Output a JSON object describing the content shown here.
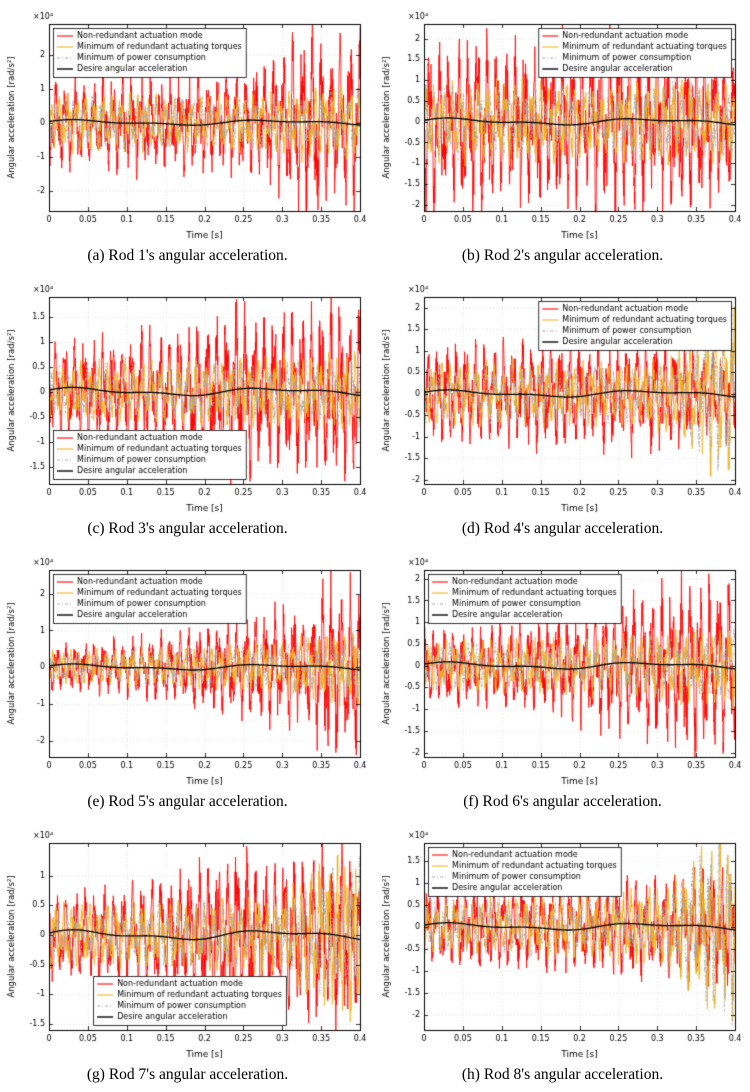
{
  "legend_entries": [
    {
      "label": "Non-redundant actuation mode",
      "color": "#FF0000",
      "style": "solid"
    },
    {
      "label": "Minimum of redundant actuating torques",
      "color": "#EFB320",
      "style": "solid"
    },
    {
      "label": "Minimum of power consumption",
      "color": "#A6A6A6",
      "style": "dashdot"
    },
    {
      "label": "Desire angular acceleration",
      "color": "#000000",
      "style": "solid"
    }
  ],
  "chart_data": [
    {
      "id": "a",
      "type": "line",
      "caption": "(a) Rod 1's angular acceleration.",
      "xlabel": "Time [s]",
      "ylabel": "Angular acceleration [rad/s²]",
      "exponent": "×10⁴",
      "xlim": [
        0,
        0.4
      ],
      "xticks": [
        0,
        0.05,
        0.1,
        0.15,
        0.2,
        0.25,
        0.3,
        0.35,
        0.4
      ],
      "ylim": [
        -2.6,
        2.9
      ],
      "yticks": [
        -2,
        -1,
        0,
        1,
        2
      ],
      "grid": true,
      "legend_pos": "nw",
      "seed": 11,
      "envelopes": {
        "red": [
          [
            0,
            1.3
          ],
          [
            0.05,
            1.2
          ],
          [
            0.1,
            1.5
          ],
          [
            0.15,
            1.3
          ],
          [
            0.2,
            1.4
          ],
          [
            0.25,
            1.5
          ],
          [
            0.28,
            1.8
          ],
          [
            0.31,
            2.3
          ],
          [
            0.34,
            2.7
          ],
          [
            0.36,
            2.0
          ],
          [
            0.38,
            2.4
          ],
          [
            0.4,
            2.6
          ]
        ],
        "yellow": [
          [
            0,
            0.8
          ],
          [
            0.1,
            0.85
          ],
          [
            0.2,
            0.8
          ],
          [
            0.3,
            0.95
          ],
          [
            0.35,
            1.1
          ],
          [
            0.4,
            1.05
          ]
        ],
        "gray": [
          [
            0,
            0.72
          ],
          [
            0.1,
            0.77
          ],
          [
            0.2,
            0.72
          ],
          [
            0.3,
            0.86
          ],
          [
            0.35,
            1.0
          ],
          [
            0.4,
            0.95
          ]
        ],
        "black": 0.06
      }
    },
    {
      "id": "b",
      "type": "line",
      "caption": "(b) Rod 2's angular acceleration.",
      "xlabel": "Time [s]",
      "ylabel": "Angular acceleration [rad/s²]",
      "exponent": "×10⁴",
      "xlim": [
        0,
        0.4
      ],
      "xticks": [
        0,
        0.05,
        0.1,
        0.15,
        0.2,
        0.25,
        0.3,
        0.35,
        0.4
      ],
      "ylim": [
        -2.15,
        2.35
      ],
      "yticks": [
        -2,
        -1.5,
        -1,
        -0.5,
        0,
        0.5,
        1,
        1.5,
        2
      ],
      "grid": true,
      "legend_pos": "ne",
      "seed": 22,
      "envelopes": {
        "red": [
          [
            0,
            2.2
          ],
          [
            0.03,
            1.7
          ],
          [
            0.07,
            2.3
          ],
          [
            0.1,
            1.8
          ],
          [
            0.15,
            2.1
          ],
          [
            0.2,
            1.9
          ],
          [
            0.25,
            2.2
          ],
          [
            0.3,
            1.9
          ],
          [
            0.35,
            2.0
          ],
          [
            0.4,
            1.7
          ]
        ],
        "yellow": [
          [
            0,
            0.9
          ],
          [
            0.1,
            0.95
          ],
          [
            0.2,
            0.9
          ],
          [
            0.3,
            0.95
          ],
          [
            0.4,
            1.0
          ]
        ],
        "gray": [
          [
            0,
            0.81
          ],
          [
            0.1,
            0.86
          ],
          [
            0.2,
            0.81
          ],
          [
            0.3,
            0.86
          ],
          [
            0.4,
            0.9
          ]
        ],
        "black": 0.06
      }
    },
    {
      "id": "c",
      "type": "line",
      "caption": "(c) Rod 3's angular acceleration.",
      "xlabel": "Time [s]",
      "ylabel": "Angular acceleration [rad/s²]",
      "exponent": "×10⁴",
      "xlim": [
        0,
        0.4
      ],
      "xticks": [
        0,
        0.05,
        0.1,
        0.15,
        0.2,
        0.25,
        0.3,
        0.35,
        0.4
      ],
      "ylim": [
        -1.85,
        1.9
      ],
      "yticks": [
        -1.5,
        -1,
        -0.5,
        0,
        0.5,
        1,
        1.5
      ],
      "grid": true,
      "legend_pos": "sw",
      "seed": 33,
      "envelopes": {
        "red": [
          [
            0,
            0.95
          ],
          [
            0.05,
            1.0
          ],
          [
            0.1,
            1.15
          ],
          [
            0.15,
            1.2
          ],
          [
            0.2,
            1.4
          ],
          [
            0.24,
            1.8
          ],
          [
            0.27,
            1.4
          ],
          [
            0.3,
            1.6
          ],
          [
            0.33,
            1.5
          ],
          [
            0.36,
            1.75
          ],
          [
            0.4,
            1.6
          ]
        ],
        "yellow": [
          [
            0,
            0.55
          ],
          [
            0.1,
            0.6
          ],
          [
            0.2,
            0.65
          ],
          [
            0.3,
            0.7
          ],
          [
            0.4,
            0.75
          ]
        ],
        "gray": [
          [
            0,
            0.5
          ],
          [
            0.1,
            0.54
          ],
          [
            0.2,
            0.59
          ],
          [
            0.3,
            0.63
          ],
          [
            0.4,
            0.68
          ]
        ],
        "black": 0.06
      }
    },
    {
      "id": "d",
      "type": "line",
      "caption": "(d) Rod 4's angular acceleration.",
      "xlabel": "Time [s]",
      "ylabel": "Angular acceleration [rad/s²]",
      "exponent": "×10⁴",
      "xlim": [
        0,
        0.4
      ],
      "xticks": [
        0,
        0.05,
        0.1,
        0.15,
        0.2,
        0.25,
        0.3,
        0.35,
        0.4
      ],
      "ylim": [
        -2.1,
        2.25
      ],
      "yticks": [
        -2,
        -1.5,
        -1,
        -0.5,
        0,
        0.5,
        1,
        1.5,
        2
      ],
      "grid": true,
      "legend_pos": "ne",
      "seed": 44,
      "envelopes": {
        "red": [
          [
            0,
            1.0
          ],
          [
            0.05,
            1.2
          ],
          [
            0.1,
            1.1
          ],
          [
            0.15,
            1.2
          ],
          [
            0.2,
            1.15
          ],
          [
            0.25,
            1.25
          ],
          [
            0.3,
            1.3
          ],
          [
            0.33,
            1.1
          ],
          [
            0.36,
            0.9
          ],
          [
            0.4,
            1.0
          ]
        ],
        "yellow": [
          [
            0,
            0.7
          ],
          [
            0.1,
            0.75
          ],
          [
            0.2,
            0.7
          ],
          [
            0.28,
            0.75
          ],
          [
            0.32,
            0.9
          ],
          [
            0.35,
            1.5
          ],
          [
            0.38,
            2.0
          ],
          [
            0.4,
            2.1
          ]
        ],
        "gray": [
          [
            0,
            0.63
          ],
          [
            0.1,
            0.68
          ],
          [
            0.2,
            0.63
          ],
          [
            0.28,
            0.68
          ],
          [
            0.32,
            0.82
          ],
          [
            0.35,
            1.4
          ],
          [
            0.38,
            1.85
          ],
          [
            0.4,
            1.95
          ]
        ],
        "black": 0.06
      }
    },
    {
      "id": "e",
      "type": "line",
      "caption": "(e) Rod 5's angular acceleration.",
      "xlabel": "Time [s]",
      "ylabel": "Angular acceleration [rad/s²]",
      "exponent": "×10⁴",
      "xlim": [
        0,
        0.4
      ],
      "xticks": [
        0,
        0.05,
        0.1,
        0.15,
        0.2,
        0.25,
        0.3,
        0.35,
        0.4
      ],
      "ylim": [
        -2.45,
        2.65
      ],
      "yticks": [
        -2,
        -1,
        0,
        1,
        2
      ],
      "grid": true,
      "legend_pos": "nw",
      "seed": 55,
      "envelopes": {
        "red": [
          [
            0,
            0.6
          ],
          [
            0.05,
            0.7
          ],
          [
            0.1,
            0.75
          ],
          [
            0.15,
            0.9
          ],
          [
            0.2,
            1.1
          ],
          [
            0.25,
            1.3
          ],
          [
            0.3,
            1.6
          ],
          [
            0.33,
            1.4
          ],
          [
            0.36,
            2.5
          ],
          [
            0.38,
            2.2
          ],
          [
            0.4,
            2.3
          ]
        ],
        "yellow": [
          [
            0,
            0.45
          ],
          [
            0.1,
            0.5
          ],
          [
            0.2,
            0.55
          ],
          [
            0.3,
            0.7
          ],
          [
            0.35,
            1.0
          ],
          [
            0.4,
            1.1
          ]
        ],
        "gray": [
          [
            0,
            0.41
          ],
          [
            0.1,
            0.45
          ],
          [
            0.2,
            0.5
          ],
          [
            0.3,
            0.63
          ],
          [
            0.35,
            0.9
          ],
          [
            0.4,
            1.0
          ]
        ],
        "black": 0.06
      }
    },
    {
      "id": "f",
      "type": "line",
      "caption": "(f) Rod 6's angular acceleration.",
      "xlabel": "Time [s]",
      "ylabel": "Angular acceleration [rad/s²]",
      "exponent": "×10⁴",
      "xlim": [
        0,
        0.4
      ],
      "xticks": [
        0,
        0.05,
        0.1,
        0.15,
        0.2,
        0.25,
        0.3,
        0.35,
        0.4
      ],
      "ylim": [
        -2.1,
        2.2
      ],
      "yticks": [
        -2,
        -1.5,
        -1,
        -0.5,
        0,
        0.5,
        1,
        1.5,
        2
      ],
      "grid": true,
      "legend_pos": "nw",
      "seed": 66,
      "envelopes": {
        "red": [
          [
            0,
            0.8
          ],
          [
            0.05,
            0.9
          ],
          [
            0.1,
            0.95
          ],
          [
            0.15,
            1.0
          ],
          [
            0.2,
            1.25
          ],
          [
            0.25,
            1.5
          ],
          [
            0.3,
            1.75
          ],
          [
            0.35,
            1.9
          ],
          [
            0.4,
            2.0
          ]
        ],
        "yellow": [
          [
            0,
            0.55
          ],
          [
            0.1,
            0.6
          ],
          [
            0.2,
            0.65
          ],
          [
            0.3,
            0.75
          ],
          [
            0.4,
            0.9
          ]
        ],
        "gray": [
          [
            0,
            0.5
          ],
          [
            0.1,
            0.54
          ],
          [
            0.2,
            0.59
          ],
          [
            0.3,
            0.68
          ],
          [
            0.4,
            0.81
          ]
        ],
        "black": 0.06
      }
    },
    {
      "id": "g",
      "type": "line",
      "caption": "(g) Rod 7's angular acceleration.",
      "xlabel": "Time [s]",
      "ylabel": "Angular acceleration [rad/s²]",
      "exponent": "×10⁴",
      "xlim": [
        0,
        0.4
      ],
      "xticks": [
        0,
        0.05,
        0.1,
        0.15,
        0.2,
        0.25,
        0.3,
        0.35,
        0.4
      ],
      "ylim": [
        -1.6,
        1.55
      ],
      "yticks": [
        -1.5,
        -1,
        -0.5,
        0,
        0.5,
        1
      ],
      "grid": true,
      "legend_pos": "s",
      "seed": 77,
      "envelopes": {
        "red": [
          [
            0,
            0.7
          ],
          [
            0.05,
            0.75
          ],
          [
            0.1,
            0.8
          ],
          [
            0.15,
            1.0
          ],
          [
            0.2,
            1.2
          ],
          [
            0.25,
            1.45
          ],
          [
            0.28,
            1.2
          ],
          [
            0.32,
            1.3
          ],
          [
            0.36,
            1.5
          ],
          [
            0.4,
            1.35
          ]
        ],
        "yellow": [
          [
            0,
            0.5
          ],
          [
            0.1,
            0.55
          ],
          [
            0.2,
            0.6
          ],
          [
            0.3,
            0.7
          ],
          [
            0.36,
            1.3
          ],
          [
            0.4,
            1.4
          ]
        ],
        "gray": [
          [
            0,
            0.45
          ],
          [
            0.1,
            0.5
          ],
          [
            0.2,
            0.54
          ],
          [
            0.3,
            0.63
          ],
          [
            0.36,
            1.2
          ],
          [
            0.4,
            1.3
          ]
        ],
        "black": 0.06
      }
    },
    {
      "id": "h",
      "type": "line",
      "caption": "(h) Rod 8's angular acceleration.",
      "xlabel": "Time [s]",
      "ylabel": "Angular acceleration [rad/s²]",
      "exponent": "×10⁴",
      "xlim": [
        0,
        0.4
      ],
      "xticks": [
        0,
        0.05,
        0.1,
        0.15,
        0.2,
        0.25,
        0.3,
        0.35,
        0.4
      ],
      "ylim": [
        -2.35,
        1.9
      ],
      "yticks": [
        -2,
        -1.5,
        -1,
        -0.5,
        0,
        0.5,
        1,
        1.5
      ],
      "grid": true,
      "legend_pos": "nw",
      "seed": 88,
      "envelopes": {
        "red": [
          [
            0,
            0.85
          ],
          [
            0.1,
            0.9
          ],
          [
            0.2,
            1.0
          ],
          [
            0.3,
            1.1
          ],
          [
            0.35,
            1.3
          ],
          [
            0.4,
            1.4
          ]
        ],
        "yellow": [
          [
            0,
            0.6
          ],
          [
            0.1,
            0.65
          ],
          [
            0.2,
            0.7
          ],
          [
            0.3,
            0.85
          ],
          [
            0.34,
            1.4
          ],
          [
            0.37,
            2.0
          ],
          [
            0.4,
            2.2
          ]
        ],
        "gray": [
          [
            0,
            0.54
          ],
          [
            0.1,
            0.59
          ],
          [
            0.2,
            0.63
          ],
          [
            0.3,
            0.77
          ],
          [
            0.34,
            1.3
          ],
          [
            0.37,
            1.85
          ],
          [
            0.4,
            2.05
          ]
        ],
        "black": 0.06
      }
    }
  ]
}
